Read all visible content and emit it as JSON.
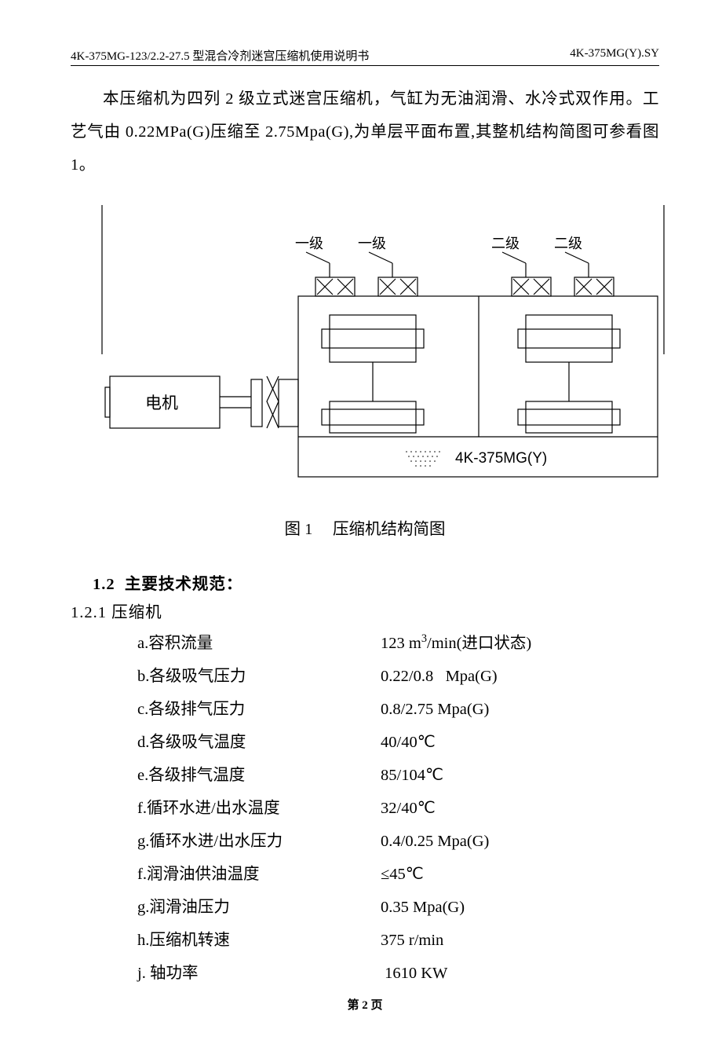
{
  "header": {
    "left": "4K-375MG-123/2.2-27.5 型混合冷剂迷宫压缩机使用说明书",
    "right": "4K-375MG(Y).SY"
  },
  "intro_html": "本压缩机为四列 2 级立式迷宫压缩机，气缸为无油润滑、水冷式双作用。工艺气由 0.22MPa(G)压缩至 2.75Mpa(G),为单层平面布置,其整机结构简图可参看图 1。",
  "diagram": {
    "stage_labels": [
      "一级",
      "一级",
      "二级",
      "二级"
    ],
    "motor_label": "电机",
    "model_label": "4K-375MG(Y)",
    "line_color": "#000000",
    "label_color": "#1a1a1a",
    "label_fontsize": 18,
    "motor_fontsize": 21
  },
  "caption": "图 1  压缩机结构简图",
  "section": {
    "number": "1.2",
    "title": "主要技术规范："
  },
  "subsection": "1.2.1 压缩机",
  "specs": [
    {
      "label": "a.容积流量",
      "value": "123 m³/min(进口状态)"
    },
    {
      "label": "b.各级吸气压力",
      "value": "0.22/0.8   Mpa(G)"
    },
    {
      "label": "c.各级排气压力",
      "value": "0.8/2.75 Mpa(G)"
    },
    {
      "label": "d.各级吸气温度",
      "value": "40/40℃"
    },
    {
      "label": "e.各级排气温度",
      "value": "85/104℃"
    },
    {
      "label": "f.循环水进/出水温度",
      "value": "32/40℃"
    },
    {
      "label": "g.循环水进/出水压力",
      "value": "0.4/0.25 Mpa(G)"
    },
    {
      "label": "f.润滑油供油温度",
      "value": "≤45℃"
    },
    {
      "label": "g.润滑油压力",
      "value": "0.35 Mpa(G)"
    },
    {
      "label": "h.压缩机转速",
      "value": "375 r/min"
    },
    {
      "label": "j. 轴功率",
      "value": " 1610 KW"
    }
  ],
  "footer": "第 2 页"
}
